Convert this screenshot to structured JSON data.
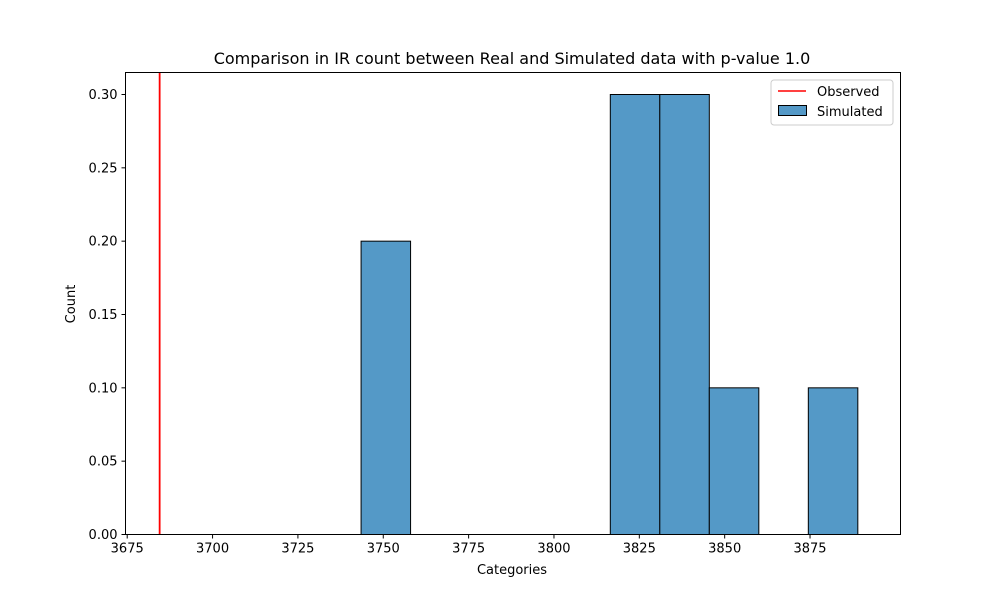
{
  "chart_data": {
    "type": "bar",
    "title": "Comparison in IR count between Real and Simulated data with p-value 1.0",
    "xlabel": "Categories",
    "ylabel": "Count",
    "xlim": [
      3674.5,
      3901.5
    ],
    "ylim": [
      0,
      0.315
    ],
    "xticks": [
      3675,
      3700,
      3725,
      3750,
      3775,
      3800,
      3825,
      3850,
      3875
    ],
    "xtick_labels": [
      "3675",
      "3700",
      "3725",
      "3750",
      "3775",
      "3800",
      "3825",
      "3850",
      "3875"
    ],
    "yticks": [
      0,
      0.05,
      0.1,
      0.15,
      0.2,
      0.25,
      0.3
    ],
    "ytick_labels": [
      "0.00",
      "0.05",
      "0.10",
      "0.15",
      "0.20",
      "0.25",
      "0.30"
    ],
    "bins": [
      {
        "x0": 3743.5,
        "x1": 3758.0,
        "value": 0.2
      },
      {
        "x0": 3816.5,
        "x1": 3831.0,
        "value": 0.3
      },
      {
        "x0": 3831.0,
        "x1": 3845.5,
        "value": 0.3
      },
      {
        "x0": 3845.5,
        "x1": 3860.0,
        "value": 0.1
      },
      {
        "x0": 3874.5,
        "x1": 3889.0,
        "value": 0.1
      }
    ],
    "observed": 3684.5,
    "legend": {
      "position": "top-right",
      "entries": [
        {
          "label": "Observed",
          "kind": "line",
          "color": "#ff0000"
        },
        {
          "label": "Simulated",
          "kind": "patch",
          "color": "#5499c7"
        }
      ]
    },
    "grid": false,
    "colors": {
      "bar_fill": "#5499c7",
      "bar_edge": "#000000",
      "observed_line": "#ff0000"
    }
  }
}
